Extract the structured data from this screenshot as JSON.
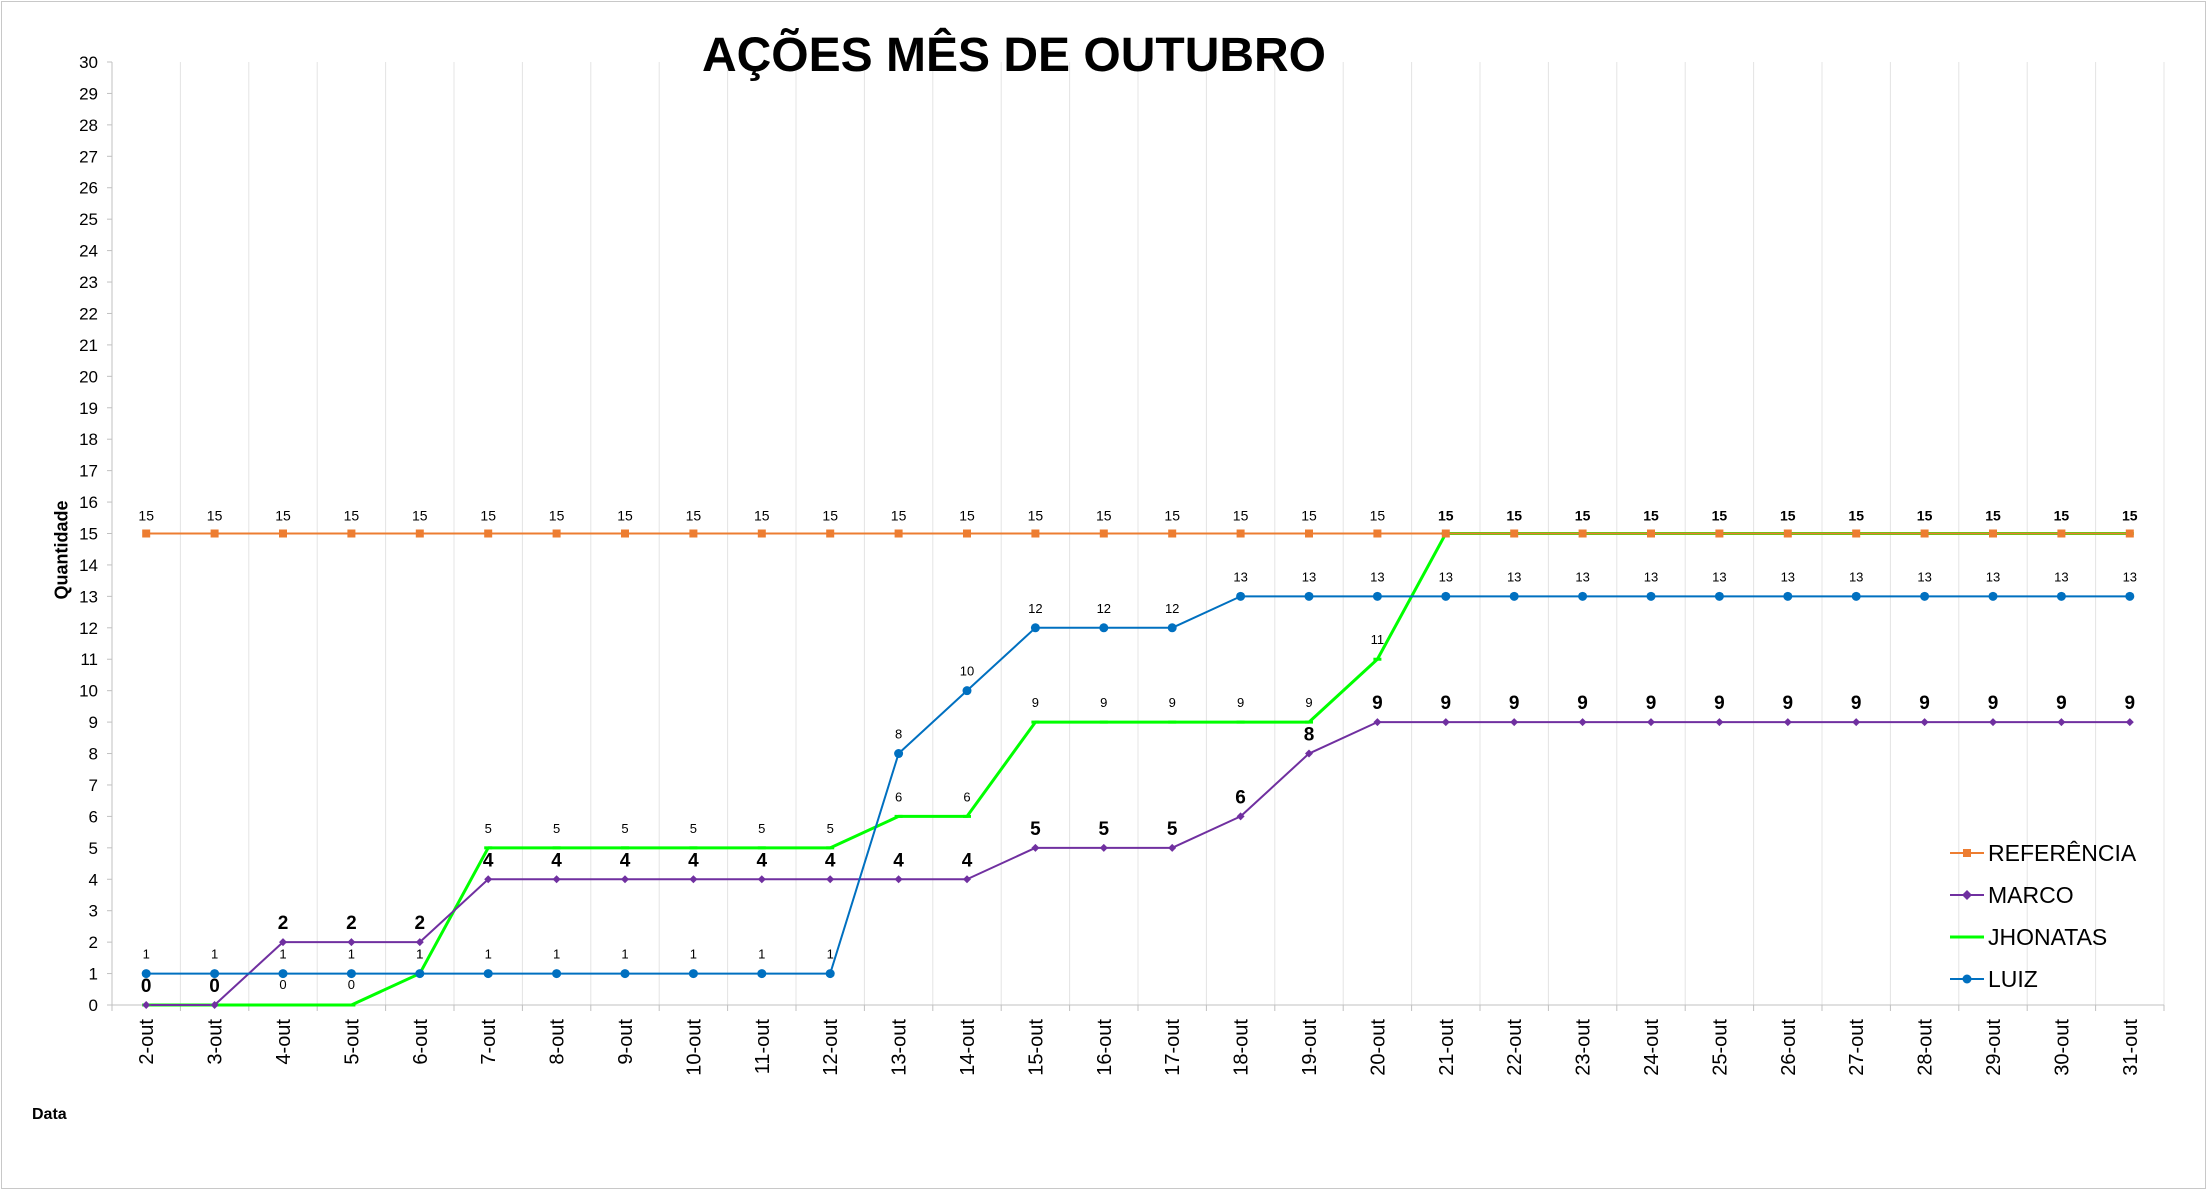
{
  "chart_data": {
    "type": "line",
    "title": "AÇÕES MÊS DE OUTUBRO",
    "xlabel": "Data",
    "ylabel": "Quantidade",
    "ylim": [
      0,
      30
    ],
    "grid": "vertical",
    "legend_position": "right",
    "categories": [
      "2-out",
      "3-out",
      "4-out",
      "5-out",
      "6-out",
      "7-out",
      "8-out",
      "9-out",
      "10-out",
      "11-out",
      "12-out",
      "13-out",
      "14-out",
      "15-out",
      "16-out",
      "17-out",
      "18-out",
      "19-out",
      "20-out",
      "21-out",
      "22-out",
      "23-out",
      "24-out",
      "25-out",
      "26-out",
      "27-out",
      "28-out",
      "29-out",
      "30-out",
      "31-out"
    ],
    "series": [
      {
        "name": "REFERÊNCIA",
        "color": "#ED7D31",
        "marker": "square",
        "values": [
          15,
          15,
          15,
          15,
          15,
          15,
          15,
          15,
          15,
          15,
          15,
          15,
          15,
          15,
          15,
          15,
          15,
          15,
          15,
          15,
          15,
          15,
          15,
          15,
          15,
          15,
          15,
          15,
          15,
          15
        ]
      },
      {
        "name": "MARCO",
        "color": "#7030A0",
        "marker": "diamond",
        "values": [
          0,
          0,
          2,
          2,
          2,
          4,
          4,
          4,
          4,
          4,
          4,
          4,
          4,
          5,
          5,
          5,
          6,
          8,
          9,
          9,
          9,
          9,
          9,
          9,
          9,
          9,
          9,
          9,
          9,
          9
        ]
      },
      {
        "name": "JHONATAS",
        "color": "#00FF00",
        "marker": "dash",
        "values": [
          0,
          0,
          0,
          0,
          1,
          5,
          5,
          5,
          5,
          5,
          5,
          6,
          6,
          9,
          9,
          9,
          9,
          9,
          11,
          15,
          15,
          15,
          15,
          15,
          15,
          15,
          15,
          15,
          15,
          15
        ]
      },
      {
        "name": "LUIZ",
        "color": "#0070C0",
        "marker": "circle",
        "values": [
          1,
          1,
          1,
          1,
          1,
          1,
          1,
          1,
          1,
          1,
          1,
          8,
          10,
          12,
          12,
          12,
          13,
          13,
          13,
          13,
          13,
          13,
          13,
          13,
          13,
          13,
          13,
          13,
          13,
          13
        ]
      }
    ]
  }
}
